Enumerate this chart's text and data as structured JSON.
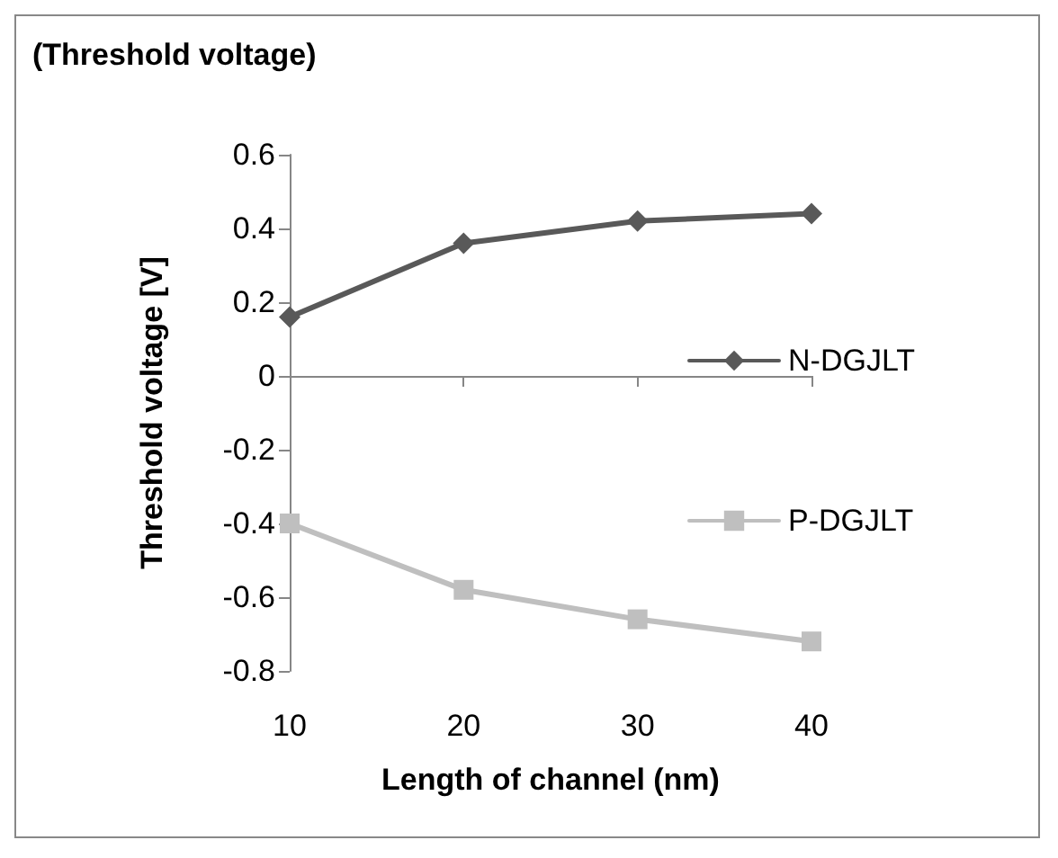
{
  "chart_data": {
    "type": "line",
    "title": "(Threshold voltage)",
    "xlabel": "Length of channel (nm)",
    "ylabel": "Threshold voltage [V]",
    "x": [
      10,
      20,
      30,
      40
    ],
    "xlim": [
      10,
      40
    ],
    "xticks": [
      10,
      20,
      30,
      40
    ],
    "ylim": [
      -0.8,
      0.6
    ],
    "yticks": [
      -0.8,
      -0.6,
      -0.4,
      -0.2,
      0,
      0.2,
      0.4,
      0.6
    ],
    "series": [
      {
        "name": "N-DGJLT",
        "color": "#595959",
        "marker": "diamond",
        "values": [
          0.16,
          0.36,
          0.42,
          0.44
        ]
      },
      {
        "name": "P-DGJLT",
        "color": "#bfbfbf",
        "marker": "square",
        "values": [
          -0.4,
          -0.58,
          -0.66,
          -0.72
        ]
      }
    ],
    "legend": "right",
    "line_style": "solid"
  }
}
